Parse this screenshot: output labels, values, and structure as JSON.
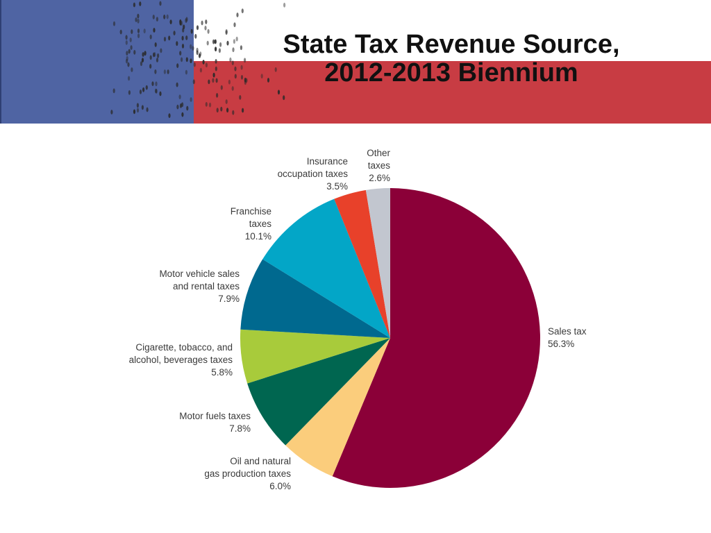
{
  "title": {
    "line1": "State Tax Revenue Source,",
    "line2": "2012-2013 Biennium"
  },
  "colors": {
    "banner_blue": "#4f64a3",
    "banner_red": "#c83c43",
    "text": "#3a3a3a"
  },
  "chart_data": {
    "type": "pie",
    "title": "State Tax Revenue Source, 2012-2013 Biennium",
    "start_angle_deg": 0,
    "direction": "clockwise",
    "slices": [
      {
        "label": [
          "Sales tax"
        ],
        "pct_text": "56.3%",
        "value": 56.3,
        "color": "#8b0038"
      },
      {
        "label": [
          "Oil and natural",
          "gas production taxes"
        ],
        "pct_text": "6.0%",
        "value": 6.0,
        "color": "#fbcd7c"
      },
      {
        "label": [
          "Motor fuels taxes"
        ],
        "pct_text": "7.8%",
        "value": 7.8,
        "color": "#006650"
      },
      {
        "label": [
          "Cigarette, tobacco, and",
          "alcohol, beverages taxes"
        ],
        "pct_text": "5.8%",
        "value": 5.8,
        "color": "#a8cb3b"
      },
      {
        "label": [
          "Motor vehicle sales",
          "and rental taxes"
        ],
        "pct_text": "7.9%",
        "value": 7.9,
        "color": "#00698f"
      },
      {
        "label": [
          "Franchise",
          "taxes"
        ],
        "pct_text": "10.1%",
        "value": 10.1,
        "color": "#03a6c7"
      },
      {
        "label": [
          "Insurance",
          "occupation taxes"
        ],
        "pct_text": "3.5%",
        "value": 3.5,
        "color": "#e8412a"
      },
      {
        "label": [
          "Other",
          "taxes"
        ],
        "pct_text": "2.6%",
        "value": 2.6,
        "color": "#c2c6cf"
      }
    ]
  }
}
